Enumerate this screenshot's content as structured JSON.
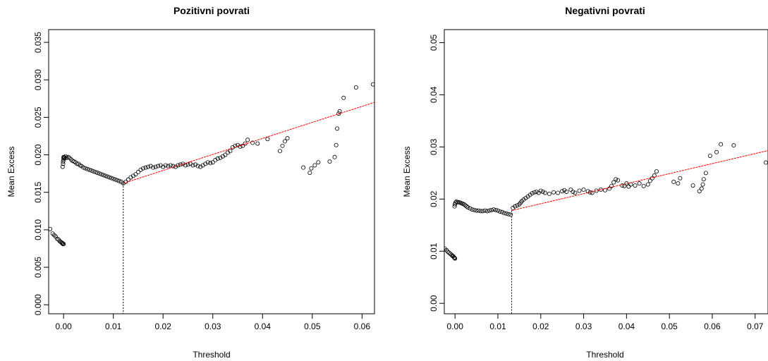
{
  "chart_data": [
    {
      "type": "scatter",
      "title": "Pozitivni povrati",
      "xlabel": "Threshold",
      "ylabel": "Mean Excess",
      "xlim": [
        -0.003,
        0.0625
      ],
      "ylim": [
        -0.0012,
        0.0367
      ],
      "xticks": [
        0.0,
        0.01,
        0.02,
        0.03,
        0.04,
        0.05,
        0.06
      ],
      "xtick_labels": [
        "0.00",
        "0.01",
        "0.02",
        "0.03",
        "0.04",
        "0.05",
        "0.06"
      ],
      "yticks": [
        0.0,
        0.005,
        0.01,
        0.015,
        0.02,
        0.025,
        0.03,
        0.035
      ],
      "ytick_labels": [
        "0.000",
        "0.005",
        "0.010",
        "0.015",
        "0.020",
        "0.025",
        "0.030",
        "0.035"
      ],
      "threshold_line": {
        "x": 0.012,
        "y": 0.0162
      },
      "fit_line": {
        "x": [
          0.012,
          0.0625
        ],
        "y": [
          0.0162,
          0.027
        ],
        "color": "#ff0000"
      },
      "points": {
        "x": [
          -0.0027,
          -0.0022,
          -0.0019,
          -0.0016,
          -0.0013,
          -0.001,
          -0.0008,
          -0.0006,
          -0.0004,
          -0.0003,
          -0.0002,
          -0.0001,
          0.0,
          -0.0002,
          -0.0001,
          -0.0001,
          0.0,
          0.0,
          0.0,
          0.0001,
          0.0002,
          0.0004,
          0.0006,
          0.0009,
          0.0012,
          0.0015,
          0.0018,
          0.0021,
          0.0024,
          0.0027,
          0.003,
          0.0033,
          0.0036,
          0.004,
          0.0044,
          0.0048,
          0.0052,
          0.0056,
          0.006,
          0.0064,
          0.0068,
          0.0072,
          0.0076,
          0.008,
          0.0084,
          0.0088,
          0.0092,
          0.0096,
          0.01,
          0.0104,
          0.0108,
          0.0112,
          0.0116,
          0.012,
          0.0125,
          0.013,
          0.0135,
          0.014,
          0.0145,
          0.015,
          0.0155,
          0.016,
          0.0165,
          0.017,
          0.0175,
          0.018,
          0.0185,
          0.019,
          0.0195,
          0.02,
          0.0205,
          0.021,
          0.0215,
          0.022,
          0.0225,
          0.023,
          0.0235,
          0.024,
          0.0245,
          0.025,
          0.0255,
          0.026,
          0.0265,
          0.027,
          0.0275,
          0.028,
          0.0285,
          0.029,
          0.0295,
          0.03,
          0.0305,
          0.031,
          0.0315,
          0.032,
          0.0325,
          0.033,
          0.0335,
          0.034,
          0.0345,
          0.035,
          0.0355,
          0.036,
          0.0365,
          0.037,
          0.038,
          0.039,
          0.041,
          0.0435,
          0.044,
          0.0445,
          0.045,
          0.0482,
          0.0495,
          0.0498,
          0.0505,
          0.0512,
          0.0535,
          0.0545,
          0.0548,
          0.055,
          0.0553,
          0.0555,
          0.0563,
          0.0588,
          0.0622
        ],
        "y": [
          0.0101,
          0.0095,
          0.0093,
          0.0091,
          0.0088,
          0.0087,
          0.0085,
          0.0084,
          0.0083,
          0.0082,
          0.0082,
          0.0081,
          0.0081,
          0.0184,
          0.0188,
          0.0191,
          0.0193,
          0.0195,
          0.0197,
          0.0197,
          0.0196,
          0.0198,
          0.0196,
          0.0197,
          0.0196,
          0.0194,
          0.0192,
          0.0191,
          0.019,
          0.0188,
          0.0188,
          0.0186,
          0.0185,
          0.0183,
          0.0182,
          0.0181,
          0.018,
          0.0179,
          0.0178,
          0.0177,
          0.0176,
          0.0175,
          0.0174,
          0.0173,
          0.0172,
          0.0171,
          0.017,
          0.0169,
          0.0168,
          0.0167,
          0.0166,
          0.0165,
          0.0164,
          0.0162,
          0.0164,
          0.0167,
          0.017,
          0.0172,
          0.0174,
          0.0177,
          0.018,
          0.0182,
          0.0183,
          0.0184,
          0.0185,
          0.0183,
          0.0184,
          0.0185,
          0.0186,
          0.0184,
          0.0186,
          0.0185,
          0.0186,
          0.0185,
          0.0184,
          0.0186,
          0.0187,
          0.0188,
          0.0186,
          0.0187,
          0.0188,
          0.0186,
          0.0187,
          0.0185,
          0.0184,
          0.0186,
          0.0188,
          0.019,
          0.0189,
          0.019,
          0.0193,
          0.0195,
          0.0196,
          0.0198,
          0.02,
          0.0203,
          0.0205,
          0.021,
          0.0212,
          0.0213,
          0.0211,
          0.0212,
          0.0215,
          0.022,
          0.0216,
          0.0215,
          0.0221,
          0.0205,
          0.0212,
          0.0218,
          0.0222,
          0.0183,
          0.0176,
          0.0182,
          0.0186,
          0.019,
          0.0191,
          0.0197,
          0.0213,
          0.0235,
          0.0255,
          0.0258,
          0.0276,
          0.029,
          0.0294
        ]
      }
    },
    {
      "type": "scatter",
      "title": "Negativni povrati",
      "xlabel": "Threshold",
      "ylabel": "Mean Excess",
      "xlim": [
        -0.0025,
        0.073
      ],
      "ylim": [
        -0.002,
        0.0525
      ],
      "xticks": [
        0.0,
        0.01,
        0.02,
        0.03,
        0.04,
        0.05,
        0.06,
        0.07
      ],
      "xtick_labels": [
        "0.00",
        "0.01",
        "0.02",
        "0.03",
        "0.04",
        "0.05",
        "0.06",
        "0.07"
      ],
      "yticks": [
        0.0,
        0.01,
        0.02,
        0.03,
        0.04,
        0.05
      ],
      "ytick_labels": [
        "0.00",
        "0.01",
        "0.02",
        "0.03",
        "0.04",
        "0.05"
      ],
      "threshold_line": {
        "x": 0.0132,
        "y": 0.0178
      },
      "fit_line": {
        "x": [
          0.0132,
          0.073
        ],
        "y": [
          0.0178,
          0.0293
        ],
        "color": "#ff0000"
      },
      "points": {
        "x": [
          -0.0024,
          -0.002,
          -0.0017,
          -0.0014,
          -0.0011,
          -0.0008,
          -0.0006,
          -0.0004,
          -0.0002,
          -0.0001,
          0.0,
          -0.0001,
          0.0,
          0.0001,
          0.0003,
          0.0006,
          0.0009,
          0.0012,
          0.0015,
          0.0018,
          0.0021,
          0.0024,
          0.0027,
          0.003,
          0.0035,
          0.004,
          0.0045,
          0.005,
          0.0055,
          0.006,
          0.0065,
          0.007,
          0.0075,
          0.008,
          0.0085,
          0.009,
          0.0095,
          0.01,
          0.0105,
          0.011,
          0.0115,
          0.012,
          0.0125,
          0.013,
          0.0135,
          0.014,
          0.0145,
          0.015,
          0.0153,
          0.0156,
          0.016,
          0.0165,
          0.017,
          0.0175,
          0.018,
          0.0185,
          0.019,
          0.0195,
          0.02,
          0.0205,
          0.021,
          0.022,
          0.023,
          0.024,
          0.025,
          0.0255,
          0.026,
          0.027,
          0.0275,
          0.028,
          0.029,
          0.03,
          0.031,
          0.0315,
          0.032,
          0.033,
          0.034,
          0.035,
          0.036,
          0.0365,
          0.037,
          0.0375,
          0.038,
          0.039,
          0.0395,
          0.04,
          0.0405,
          0.041,
          0.042,
          0.043,
          0.044,
          0.045,
          0.0455,
          0.046,
          0.0465,
          0.047,
          0.051,
          0.052,
          0.0525,
          0.0555,
          0.057,
          0.0575,
          0.0578,
          0.058,
          0.0585,
          0.0595,
          0.061,
          0.062,
          0.065,
          0.0725
        ],
        "y": [
          0.0105,
          0.0102,
          0.0099,
          0.0097,
          0.0095,
          0.0093,
          0.0091,
          0.009,
          0.0088,
          0.0087,
          0.0086,
          0.0186,
          0.019,
          0.0193,
          0.0195,
          0.0194,
          0.0194,
          0.0193,
          0.0192,
          0.0191,
          0.019,
          0.0188,
          0.0186,
          0.0184,
          0.0182,
          0.018,
          0.0179,
          0.0178,
          0.0178,
          0.0177,
          0.0177,
          0.0178,
          0.0177,
          0.0178,
          0.0179,
          0.018,
          0.0179,
          0.0178,
          0.0176,
          0.0175,
          0.0173,
          0.0172,
          0.0171,
          0.017,
          0.0183,
          0.0186,
          0.0188,
          0.019,
          0.0193,
          0.0196,
          0.0199,
          0.0202,
          0.0205,
          0.0208,
          0.0211,
          0.0213,
          0.0214,
          0.0212,
          0.0216,
          0.0214,
          0.0212,
          0.021,
          0.0213,
          0.0212,
          0.0215,
          0.0217,
          0.0214,
          0.0218,
          0.0214,
          0.0212,
          0.0216,
          0.0218,
          0.0215,
          0.0213,
          0.0212,
          0.0216,
          0.0218,
          0.0217,
          0.022,
          0.0225,
          0.0232,
          0.0238,
          0.0236,
          0.0226,
          0.0225,
          0.023,
          0.0224,
          0.0228,
          0.0226,
          0.023,
          0.0225,
          0.0228,
          0.0235,
          0.024,
          0.0245,
          0.0253,
          0.0233,
          0.023,
          0.024,
          0.0226,
          0.0215,
          0.022,
          0.0228,
          0.0238,
          0.025,
          0.0283,
          0.029,
          0.0305,
          0.0303,
          0.027
        ]
      }
    }
  ]
}
